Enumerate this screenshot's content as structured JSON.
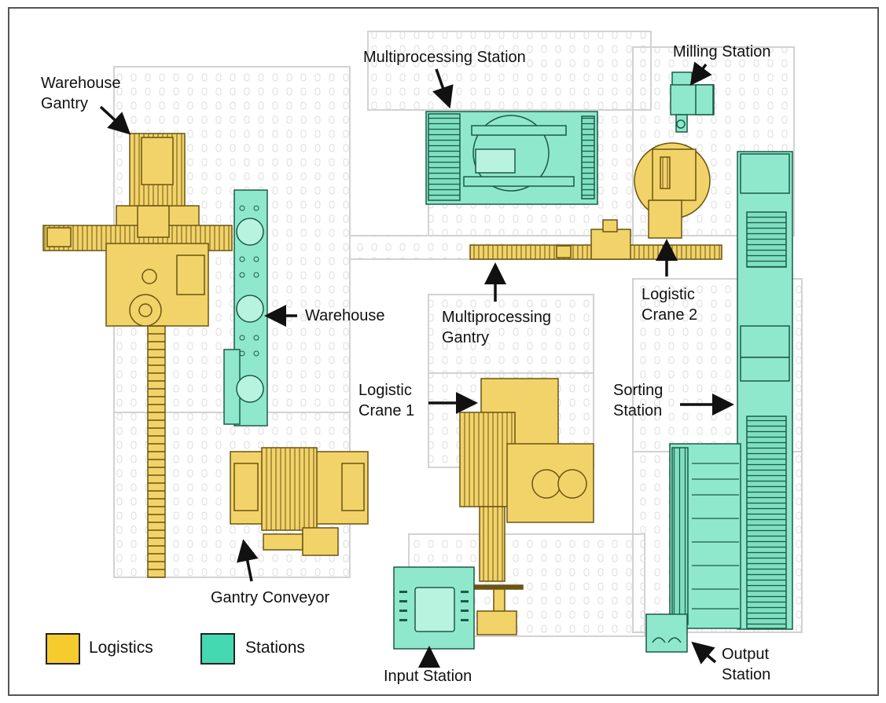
{
  "diagram": {
    "labels": {
      "warehouse_gantry": [
        "Warehouse",
        "Gantry"
      ],
      "warehouse": "Warehouse",
      "gantry_conveyor": "Gantry Conveyor",
      "multiprocessing_station": "Multiprocessing Station",
      "multiprocessing_gantry": [
        "Multiprocessing",
        "Gantry"
      ],
      "milling_station": "Milling Station",
      "logistic_crane_2": [
        "Logistic",
        "Crane 2"
      ],
      "logistic_crane_1": [
        "Logistic",
        "Crane 1"
      ],
      "sorting_station": [
        "Sorting",
        "Station"
      ],
      "input_station": "Input Station",
      "output_station": [
        "Output",
        "Station"
      ]
    },
    "legend": [
      {
        "label": "Logistics",
        "color": "#f5cb2e"
      },
      {
        "label": "Stations",
        "color": "#44d9b0"
      }
    ],
    "colors": {
      "logistics_fill": "#f2d36a",
      "logistics_stroke": "#6b5410",
      "stations_fill": "#8fe8cb",
      "stations_stroke": "#1c5a48",
      "background_lines": "#d2d2d2"
    }
  }
}
